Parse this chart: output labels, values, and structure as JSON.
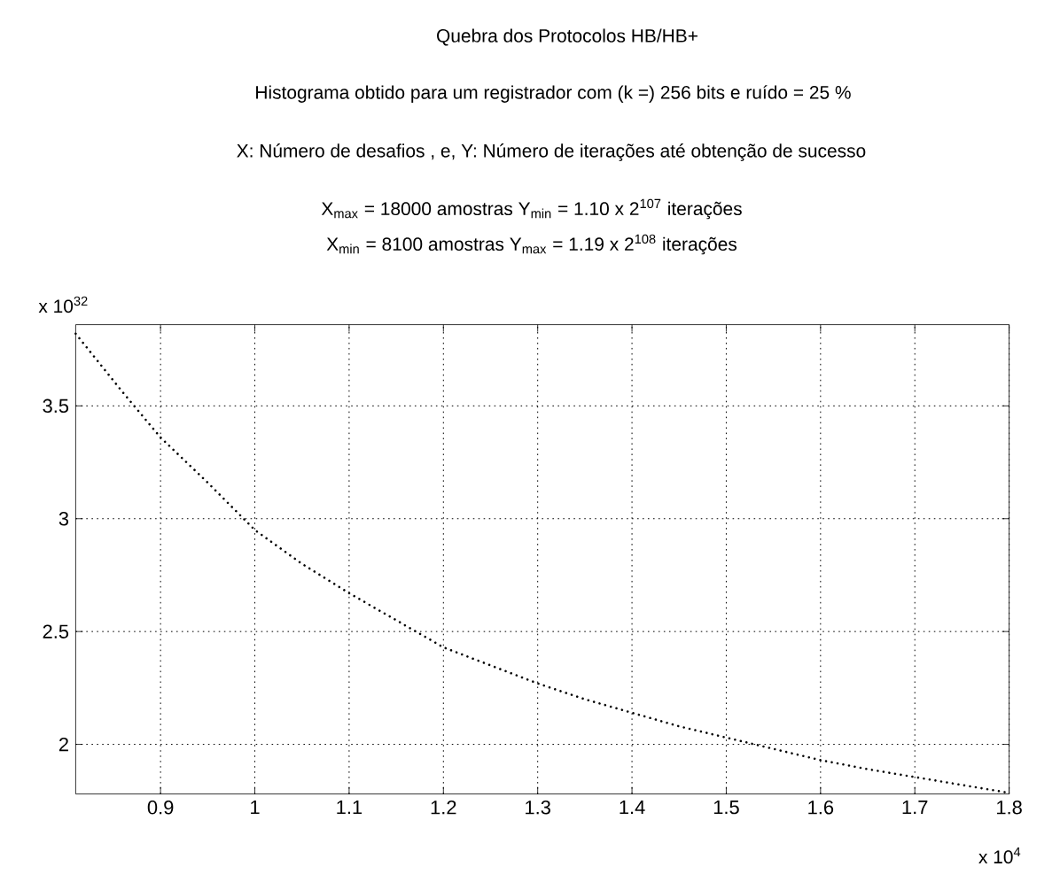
{
  "chart_data": {
    "type": "line",
    "title": "Quebra dos Protocolos HB/HB+",
    "subtitle": "Histograma obtido para um registrador com (k =) 256 bits e ruído = 25 %",
    "annotations": [
      "X: Número de desafios , e, Y: Número de iterações até obtenção de sucesso",
      "X$_{max}$ =   18000 amostras   Y$_{min}$ = 1.10 x 2$^{107}$ iterações",
      "X$_{min}$ =    8100 amostras   Y$_{max}$ = 1.19 x 2$^{108}$ iterações",
      "x 10$^{32}$",
      "x 10$^{4}$"
    ],
    "x": [
      0.81,
      0.86,
      0.9,
      0.95,
      1.0,
      1.05,
      1.1,
      1.15,
      1.2,
      1.25,
      1.3,
      1.35,
      1.4,
      1.45,
      1.5,
      1.55,
      1.6,
      1.65,
      1.7,
      1.75,
      1.8
    ],
    "values": [
      3.82,
      3.56,
      3.36,
      3.16,
      2.95,
      2.8,
      2.67,
      2.55,
      2.43,
      2.35,
      2.27,
      2.2,
      2.14,
      2.08,
      2.03,
      1.98,
      1.93,
      1.89,
      1.855,
      1.82,
      1.785
    ],
    "color": "#000000",
    "line_style": "dotted",
    "marker": "none",
    "grid": true,
    "xlim": [
      0.81,
      1.8
    ],
    "ylim": [
      1.78,
      3.86
    ],
    "xticks": [
      0.9,
      1,
      1.1,
      1.2,
      1.3,
      1.4,
      1.5,
      1.6,
      1.7,
      1.8
    ],
    "yticks": [
      2,
      2.5,
      3,
      3.5
    ]
  }
}
